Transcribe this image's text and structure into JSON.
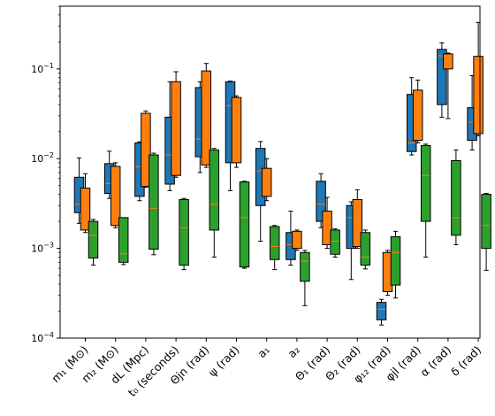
{
  "chart_data": {
    "type": "box",
    "title": "",
    "xlabel": "",
    "ylabel": "",
    "yscale": "log",
    "ylim": [
      0.0001,
      0.5
    ],
    "yticks": [
      {
        "value": 0.0001,
        "base": "10",
        "exp": "−4"
      },
      {
        "value": 0.001,
        "base": "10",
        "exp": "−3"
      },
      {
        "value": 0.01,
        "base": "10",
        "exp": "−2"
      },
      {
        "value": 0.1,
        "base": "10",
        "exp": "−1"
      }
    ],
    "categories": [
      "m₁ (M⊙)",
      "m₂ (M⊙)",
      "dL (Mpc)",
      "t₀ (seconds)",
      "Θjn (rad)",
      "ψ (rad)",
      "a₁",
      "a₂",
      "Θ₁ (rad)",
      "Θ₂ (rad)",
      "φ₁₂ (rad)",
      "φjl (rad)",
      "α (rad)",
      "δ (rad)"
    ],
    "series": [
      {
        "color": "#1f77b4",
        "boxes": [
          {
            "min": 0.0019,
            "q1": 0.0025,
            "median": 0.0031,
            "q3": 0.0062,
            "max": 0.0102
          },
          {
            "min": 0.0036,
            "q1": 0.0041,
            "median": 0.0053,
            "q3": 0.0088,
            "max": 0.0121
          },
          {
            "min": 0.0034,
            "q1": 0.0038,
            "median": 0.0081,
            "q3": 0.015,
            "max": 0.0154
          },
          {
            "min": 0.0044,
            "q1": 0.0052,
            "median": 0.011,
            "q3": 0.029,
            "max": 0.072
          },
          {
            "min": 0.007,
            "q1": 0.0105,
            "median": 0.0165,
            "q3": 0.062,
            "max": 0.072
          },
          {
            "min": 0.0044,
            "q1": 0.009,
            "median": 0.039,
            "q3": 0.072,
            "max": 0.073
          },
          {
            "min": 0.0012,
            "q1": 0.003,
            "median": 0.0073,
            "q3": 0.013,
            "max": 0.0155
          },
          {
            "min": 0.00065,
            "q1": 0.00075,
            "median": 0.0011,
            "q3": 0.0015,
            "max": 0.0026
          },
          {
            "min": 0.0017,
            "q1": 0.002,
            "median": 0.0031,
            "q3": 0.0056,
            "max": 0.0068
          },
          {
            "min": 0.00045,
            "q1": 0.001,
            "median": 0.0022,
            "q3": 0.003,
            "max": 0.0033
          },
          {
            "min": 0.00014,
            "q1": 0.00016,
            "median": 0.00021,
            "q3": 0.00025,
            "max": 0.00027
          },
          {
            "min": 0.011,
            "q1": 0.012,
            "median": 0.015,
            "q3": 0.052,
            "max": 0.08
          },
          {
            "min": 0.029,
            "q1": 0.04,
            "median": 0.14,
            "q3": 0.165,
            "max": 0.195
          },
          {
            "min": 0.0125,
            "q1": 0.016,
            "median": 0.0255,
            "q3": 0.037,
            "max": 0.084
          }
        ]
      },
      {
        "color": "#ff7f0e",
        "boxes": [
          {
            "min": 0.0015,
            "q1": 0.0016,
            "median": 0.0027,
            "q3": 0.0047,
            "max": 0.0068
          },
          {
            "min": 0.0017,
            "q1": 0.0018,
            "median": 0.0032,
            "q3": 0.0082,
            "max": 0.009
          },
          {
            "min": 0.0048,
            "q1": 0.0049,
            "median": 0.0078,
            "q3": 0.032,
            "max": 0.034
          },
          {
            "min": 0.0062,
            "q1": 0.0065,
            "median": 0.011,
            "q3": 0.072,
            "max": 0.093
          },
          {
            "min": 0.008,
            "q1": 0.0085,
            "median": 0.018,
            "q3": 0.095,
            "max": 0.115
          },
          {
            "min": 0.008,
            "q1": 0.009,
            "median": 0.041,
            "q3": 0.048,
            "max": 0.05
          },
          {
            "min": 0.0034,
            "q1": 0.0038,
            "median": 0.0058,
            "q3": 0.0078,
            "max": 0.01
          },
          {
            "min": 0.00095,
            "q1": 0.001,
            "median": 0.0014,
            "q3": 0.00155,
            "max": 0.0016
          },
          {
            "min": 0.001,
            "q1": 0.0011,
            "median": 0.002,
            "q3": 0.0026,
            "max": 0.0037
          },
          {
            "min": 0.001,
            "q1": 0.00105,
            "median": 0.0016,
            "q3": 0.0035,
            "max": 0.0045
          },
          {
            "min": 0.0003,
            "q1": 0.00033,
            "median": 0.00055,
            "q3": 0.0009,
            "max": 0.00095
          },
          {
            "min": 0.015,
            "q1": 0.016,
            "median": 0.0195,
            "q3": 0.058,
            "max": 0.075
          },
          {
            "min": 0.028,
            "q1": 0.1,
            "median": 0.142,
            "q3": 0.147,
            "max": 0.15
          },
          {
            "min": 0.018,
            "q1": 0.019,
            "median": 0.048,
            "q3": 0.138,
            "max": 0.33
          }
        ]
      },
      {
        "color": "#2ca02c",
        "boxes": [
          {
            "min": 0.00065,
            "q1": 0.00078,
            "median": 0.0014,
            "q3": 0.002,
            "max": 0.0021
          },
          {
            "min": 0.00066,
            "q1": 0.0007,
            "median": 0.00087,
            "q3": 0.0022,
            "max": 0.0022
          },
          {
            "min": 0.00085,
            "q1": 0.00098,
            "median": 0.0028,
            "q3": 0.011,
            "max": 0.0115
          },
          {
            "min": 0.00058,
            "q1": 0.00065,
            "median": 0.0017,
            "q3": 0.0035,
            "max": 0.0036
          },
          {
            "min": 0.0008,
            "q1": 0.0016,
            "median": 0.0031,
            "q3": 0.0125,
            "max": 0.013
          },
          {
            "min": 0.0006,
            "q1": 0.00062,
            "median": 0.0022,
            "q3": 0.0055,
            "max": 0.0056
          },
          {
            "min": 0.00058,
            "q1": 0.00075,
            "median": 0.00105,
            "q3": 0.00175,
            "max": 0.0018
          },
          {
            "min": 0.00023,
            "q1": 0.00043,
            "median": 0.00072,
            "q3": 0.0009,
            "max": 0.00095
          },
          {
            "min": 0.0008,
            "q1": 0.00086,
            "median": 0.0012,
            "q3": 0.0016,
            "max": 0.00165
          },
          {
            "min": 0.00059,
            "q1": 0.00065,
            "median": 0.0008,
            "q3": 0.0015,
            "max": 0.0016
          },
          {
            "min": 0.00028,
            "q1": 0.00039,
            "median": 0.0009,
            "q3": 0.00135,
            "max": 0.00155
          },
          {
            "min": 0.0008,
            "q1": 0.002,
            "median": 0.0065,
            "q3": 0.014,
            "max": 0.0145
          },
          {
            "min": 0.0011,
            "q1": 0.0014,
            "median": 0.0022,
            "q3": 0.0095,
            "max": 0.0125
          },
          {
            "min": 0.00057,
            "q1": 0.001,
            "median": 0.0018,
            "q3": 0.004,
            "max": 0.0041
          }
        ]
      }
    ],
    "median_color": "#ff7f0e",
    "grid": false,
    "legend": "none"
  }
}
